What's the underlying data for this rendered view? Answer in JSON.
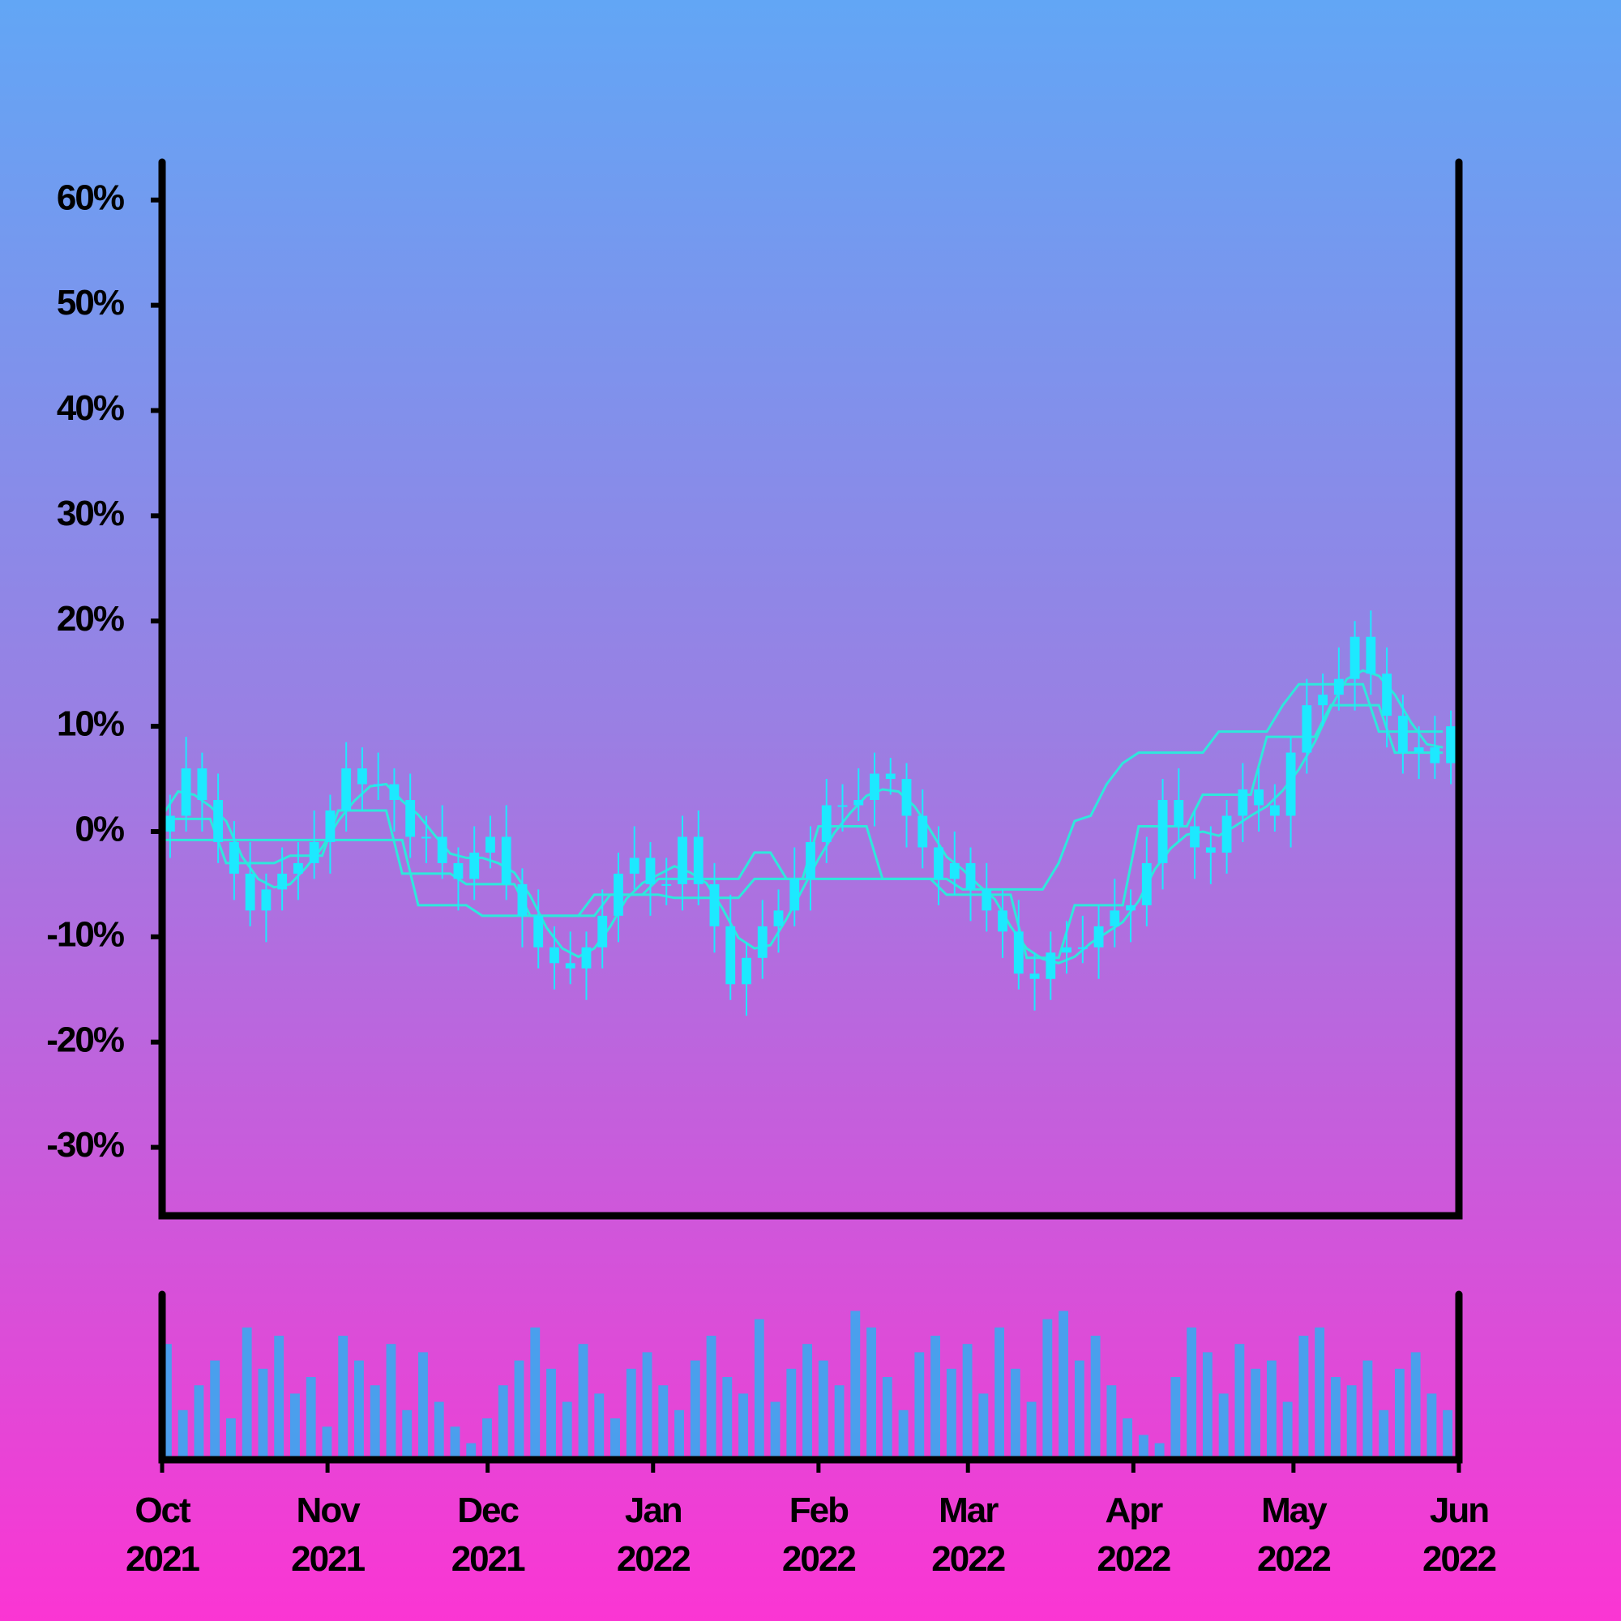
{
  "chart_data": {
    "type": "candlestick",
    "x": [
      0,
      3,
      6,
      9,
      12,
      15,
      18,
      21,
      24,
      27,
      30,
      33,
      36,
      39,
      42,
      45,
      48,
      51,
      54,
      57,
      60,
      63,
      66,
      69,
      72,
      75,
      78,
      81,
      84,
      87,
      90,
      93,
      96,
      99,
      102,
      105,
      108,
      111,
      114,
      117,
      120,
      123,
      126,
      129,
      132,
      135,
      138,
      141,
      144,
      147,
      150,
      153,
      156,
      159,
      162,
      165,
      168,
      171,
      174,
      177,
      180,
      183,
      186,
      189,
      192,
      195,
      198,
      201,
      204,
      207,
      210,
      213,
      216,
      219,
      222,
      225,
      228,
      231,
      234,
      237,
      240
    ],
    "open": [
      0,
      1.5,
      6,
      3,
      -1,
      -4,
      -7.5,
      -5.5,
      -4,
      -3,
      -1,
      2,
      6,
      4.5,
      4.5,
      3,
      -0.5,
      -0.5,
      -3,
      -4.5,
      -2,
      -0.5,
      -5,
      -8,
      -11,
      -12.5,
      -13,
      -11,
      -8,
      -4,
      -2.5,
      -5,
      -5,
      -0.5,
      -5,
      -9,
      -14.5,
      -12,
      -9,
      -7.5,
      -4.5,
      -1,
      2.5,
      2.5,
      3,
      5.5,
      5,
      1.5,
      -1.5,
      -4.5,
      -3,
      -5.5,
      -7.5,
      -9.5,
      -13.5,
      -14,
      -11.5,
      -11,
      -11,
      -9,
      -7.5,
      -7,
      -3,
      3,
      0.5,
      -1.5,
      -2,
      1.5,
      4,
      2.5,
      1.5,
      7.5,
      12,
      13,
      14.5,
      18.5,
      15,
      11,
      7.5,
      8,
      6.5
    ],
    "high": [
      3.5,
      9,
      7.5,
      5.5,
      1,
      -1,
      -4,
      -1.5,
      -1,
      2,
      3.5,
      8.5,
      8,
      7.5,
      6,
      5.5,
      1.5,
      2.5,
      -1.5,
      0.5,
      1.5,
      2.5,
      -3.5,
      -5.5,
      -9,
      -9.5,
      -9.5,
      -5.5,
      -2,
      0.5,
      -1,
      -2.5,
      1.5,
      2,
      -3,
      -6,
      -10.5,
      -6.5,
      -5.5,
      -1.5,
      0.5,
      5,
      4.5,
      6,
      7.5,
      7,
      6.5,
      4,
      0.5,
      0,
      -1.5,
      -3,
      -5.5,
      -6.5,
      -11.5,
      -9.5,
      -8.5,
      -8,
      -7,
      -4.5,
      -5.5,
      -0.5,
      5,
      6,
      2,
      0.5,
      3,
      6.5,
      6,
      4.5,
      9,
      14.5,
      15,
      17.5,
      20,
      21,
      17.5,
      13,
      10,
      11,
      11.5
    ],
    "low": [
      -2.5,
      0,
      0,
      -3,
      -6.5,
      -9,
      -10.5,
      -7.5,
      -6.5,
      -4.5,
      -4,
      0,
      2,
      3,
      0,
      -2.5,
      -3,
      -4.5,
      -7.5,
      -6.5,
      -3.5,
      -6.5,
      -11,
      -13,
      -15,
      -14.5,
      -16,
      -13,
      -10.5,
      -5.5,
      -8,
      -7,
      -7.5,
      -7,
      -11.5,
      -16,
      -17.5,
      -14,
      -11.5,
      -9,
      -7.5,
      -3,
      0,
      1,
      0.5,
      3.5,
      -1.5,
      -3.5,
      -7,
      -6,
      -8.5,
      -9.5,
      -12,
      -15,
      -17,
      -16,
      -13.5,
      -12.5,
      -14,
      -11,
      -10.5,
      -9,
      -5.5,
      -1,
      -4.5,
      -5,
      -4,
      -1,
      0,
      0,
      -1.5,
      5.5,
      10,
      11.5,
      11.5,
      13,
      8,
      5.5,
      5,
      5,
      4.5
    ],
    "close": [
      1.5,
      6,
      3,
      -1,
      -4,
      -7.5,
      -5.5,
      -4,
      -3,
      -1,
      2,
      6,
      4.5,
      4.5,
      3,
      -0.5,
      -0.5,
      -3,
      -4.5,
      -2,
      -0.5,
      -5,
      -8,
      -11,
      -12.5,
      -13,
      -11,
      -8,
      -4,
      -2.5,
      -5,
      -5,
      -0.5,
      -5,
      -9,
      -14.5,
      -12,
      -9,
      -7.5,
      -4.5,
      -1,
      2.5,
      2.5,
      3,
      5.5,
      5,
      1.5,
      -1.5,
      -4.5,
      -3,
      -5.5,
      -7.5,
      -9.5,
      -13.5,
      -14,
      -11.5,
      -11,
      -11,
      -9,
      -7.5,
      -7,
      -3,
      3,
      0.5,
      -1.5,
      -2,
      1.5,
      4,
      2.5,
      1.5,
      7.5,
      12,
      13,
      14.5,
      18.5,
      15,
      11,
      7.5,
      8,
      6.5,
      10
    ],
    "color": "#1de9ff",
    "series": [
      {
        "color": "#2ee8dc",
        "values": [
          -0.8,
          -0.8,
          -0.8,
          -0.8,
          -0.8,
          -0.8,
          -0.8,
          -0.8,
          -0.8,
          -0.8,
          -0.8,
          -0.8,
          -0.8,
          -0.8,
          -0.8,
          -0.8,
          -7,
          -7,
          -7,
          -7,
          -8,
          -8,
          -8,
          -8,
          -8,
          -8,
          -8,
          -6,
          -6,
          -6,
          -6,
          -4.5,
          -4.5,
          -4.5,
          -4.5,
          -4.5,
          -4.5,
          -2,
          -2,
          -4.5,
          -4.5,
          -4.5,
          -4.5,
          -4.5,
          -4.5,
          -4.5,
          -4.5,
          -4.5,
          -4.5,
          -4.5,
          -5.5,
          -5.5,
          -5.5,
          -5.5,
          -5.5,
          -5.5,
          -3,
          1,
          1.5,
          4.5,
          6.5,
          7.5,
          7.5,
          7.5,
          7.5,
          7.5,
          9.5,
          9.5,
          9.5,
          9.5,
          12,
          14,
          14,
          14,
          14,
          14,
          9.5,
          9.5,
          9.5,
          9.5,
          9.5
        ]
      },
      {
        "color": "#2ee8dc",
        "values": [
          1.5,
          3.8,
          3.5,
          2.4,
          1,
          -2.4,
          -4.5,
          -5.3,
          -5,
          -3.4,
          -1.5,
          1,
          2.9,
          4.3,
          4.5,
          2.9,
          1.6,
          -0.3,
          -2.1,
          -2.5,
          -2.5,
          -3,
          -3.9,
          -6.1,
          -9.1,
          -11.1,
          -11.9,
          -11.1,
          -9,
          -6.4,
          -4.9,
          -4.1,
          -3.3,
          -3.9,
          -4.9,
          -7.3,
          -10.1,
          -11.1,
          -10.8,
          -8.3,
          -5.5,
          -2.6,
          -0.1,
          1.8,
          3.4,
          4,
          3.8,
          2.4,
          0.1,
          -2.4,
          -3.6,
          -5.1,
          -6.4,
          -9,
          -11.1,
          -12.1,
          -12.5,
          -11.9,
          -10.6,
          -9.6,
          -8.6,
          -6.6,
          -3.6,
          -1.6,
          -0.3,
          0,
          -0.4,
          0.5,
          1.5,
          2.4,
          3.9,
          5.9,
          8.5,
          11.8,
          14.5,
          15.3,
          14.8,
          13,
          10.4,
          8.3,
          8
        ]
      },
      {
        "color": "#2ee8dc",
        "values": [
          1.2,
          1.2,
          1.2,
          1.2,
          -3,
          -3,
          -3,
          -3,
          -2.3,
          -2.3,
          -2.3,
          2,
          2,
          2,
          2,
          -4,
          -4,
          -4,
          -4,
          -5,
          -5,
          -5,
          -5,
          -8,
          -8,
          -8,
          -8,
          -8,
          -6,
          -6,
          -6,
          -6,
          -6.3,
          -6.3,
          -6.3,
          -6.3,
          -6.3,
          -4.5,
          -4.5,
          -4.5,
          -4.5,
          0.5,
          0.5,
          0.5,
          0.5,
          -4.5,
          -4.5,
          -4.5,
          -4.5,
          -6,
          -6,
          -6,
          -6,
          -6,
          -12,
          -12,
          -12,
          -7,
          -7,
          -7,
          -7,
          0.5,
          0.5,
          0.5,
          0.5,
          3.5,
          3.5,
          3.5,
          3.5,
          9,
          9,
          9,
          9,
          12,
          12,
          12,
          12,
          7.5,
          7.5,
          7.5,
          7.5
        ]
      }
    ],
    "volume": {
      "color": "#3aa8f0",
      "ylim": [
        0,
        100
      ],
      "values": [
        70,
        30,
        45,
        60,
        25,
        80,
        55,
        75,
        40,
        50,
        20,
        75,
        60,
        45,
        70,
        30,
        65,
        35,
        20,
        10,
        25,
        45,
        60,
        80,
        55,
        35,
        70,
        40,
        25,
        55,
        65,
        45,
        30,
        60,
        75,
        50,
        40,
        85,
        35,
        55,
        70,
        60,
        45,
        90,
        80,
        50,
        30,
        65,
        75,
        55,
        70,
        40,
        80,
        55,
        35,
        85,
        90,
        60,
        75,
        45,
        25,
        15,
        10,
        50,
        80,
        65,
        40,
        70,
        55,
        60,
        35,
        75,
        80,
        50,
        45,
        60,
        30,
        55,
        65,
        40,
        30
      ]
    },
    "xlim": [
      0,
      243
    ],
    "xticks": [
      {
        "value": 0,
        "label": "Oct 2021"
      },
      {
        "value": 31,
        "label": "Nov 2021"
      },
      {
        "value": 61,
        "label": "Dec 2021"
      },
      {
        "value": 92,
        "label": "Jan 2022"
      },
      {
        "value": 123,
        "label": "Feb 2022"
      },
      {
        "value": 151,
        "label": "Mar 2022"
      },
      {
        "value": 182,
        "label": "Apr 2022"
      },
      {
        "value": 212,
        "label": "May 2022"
      },
      {
        "value": 243,
        "label": "Jun 2022"
      }
    ],
    "ylim": [
      -36.5,
      63.6
    ],
    "yticks": [
      {
        "value": -30,
        "label": "-30%"
      },
      {
        "value": -20,
        "label": "-20%"
      },
      {
        "value": -10,
        "label": "-10%"
      },
      {
        "value": 0,
        "label": "0%"
      },
      {
        "value": 10,
        "label": "10%"
      },
      {
        "value": 20,
        "label": "20%"
      },
      {
        "value": 30,
        "label": "30%"
      },
      {
        "value": 40,
        "label": "40%"
      },
      {
        "value": 50,
        "label": "50%"
      },
      {
        "value": 60,
        "label": "60%"
      }
    ]
  }
}
